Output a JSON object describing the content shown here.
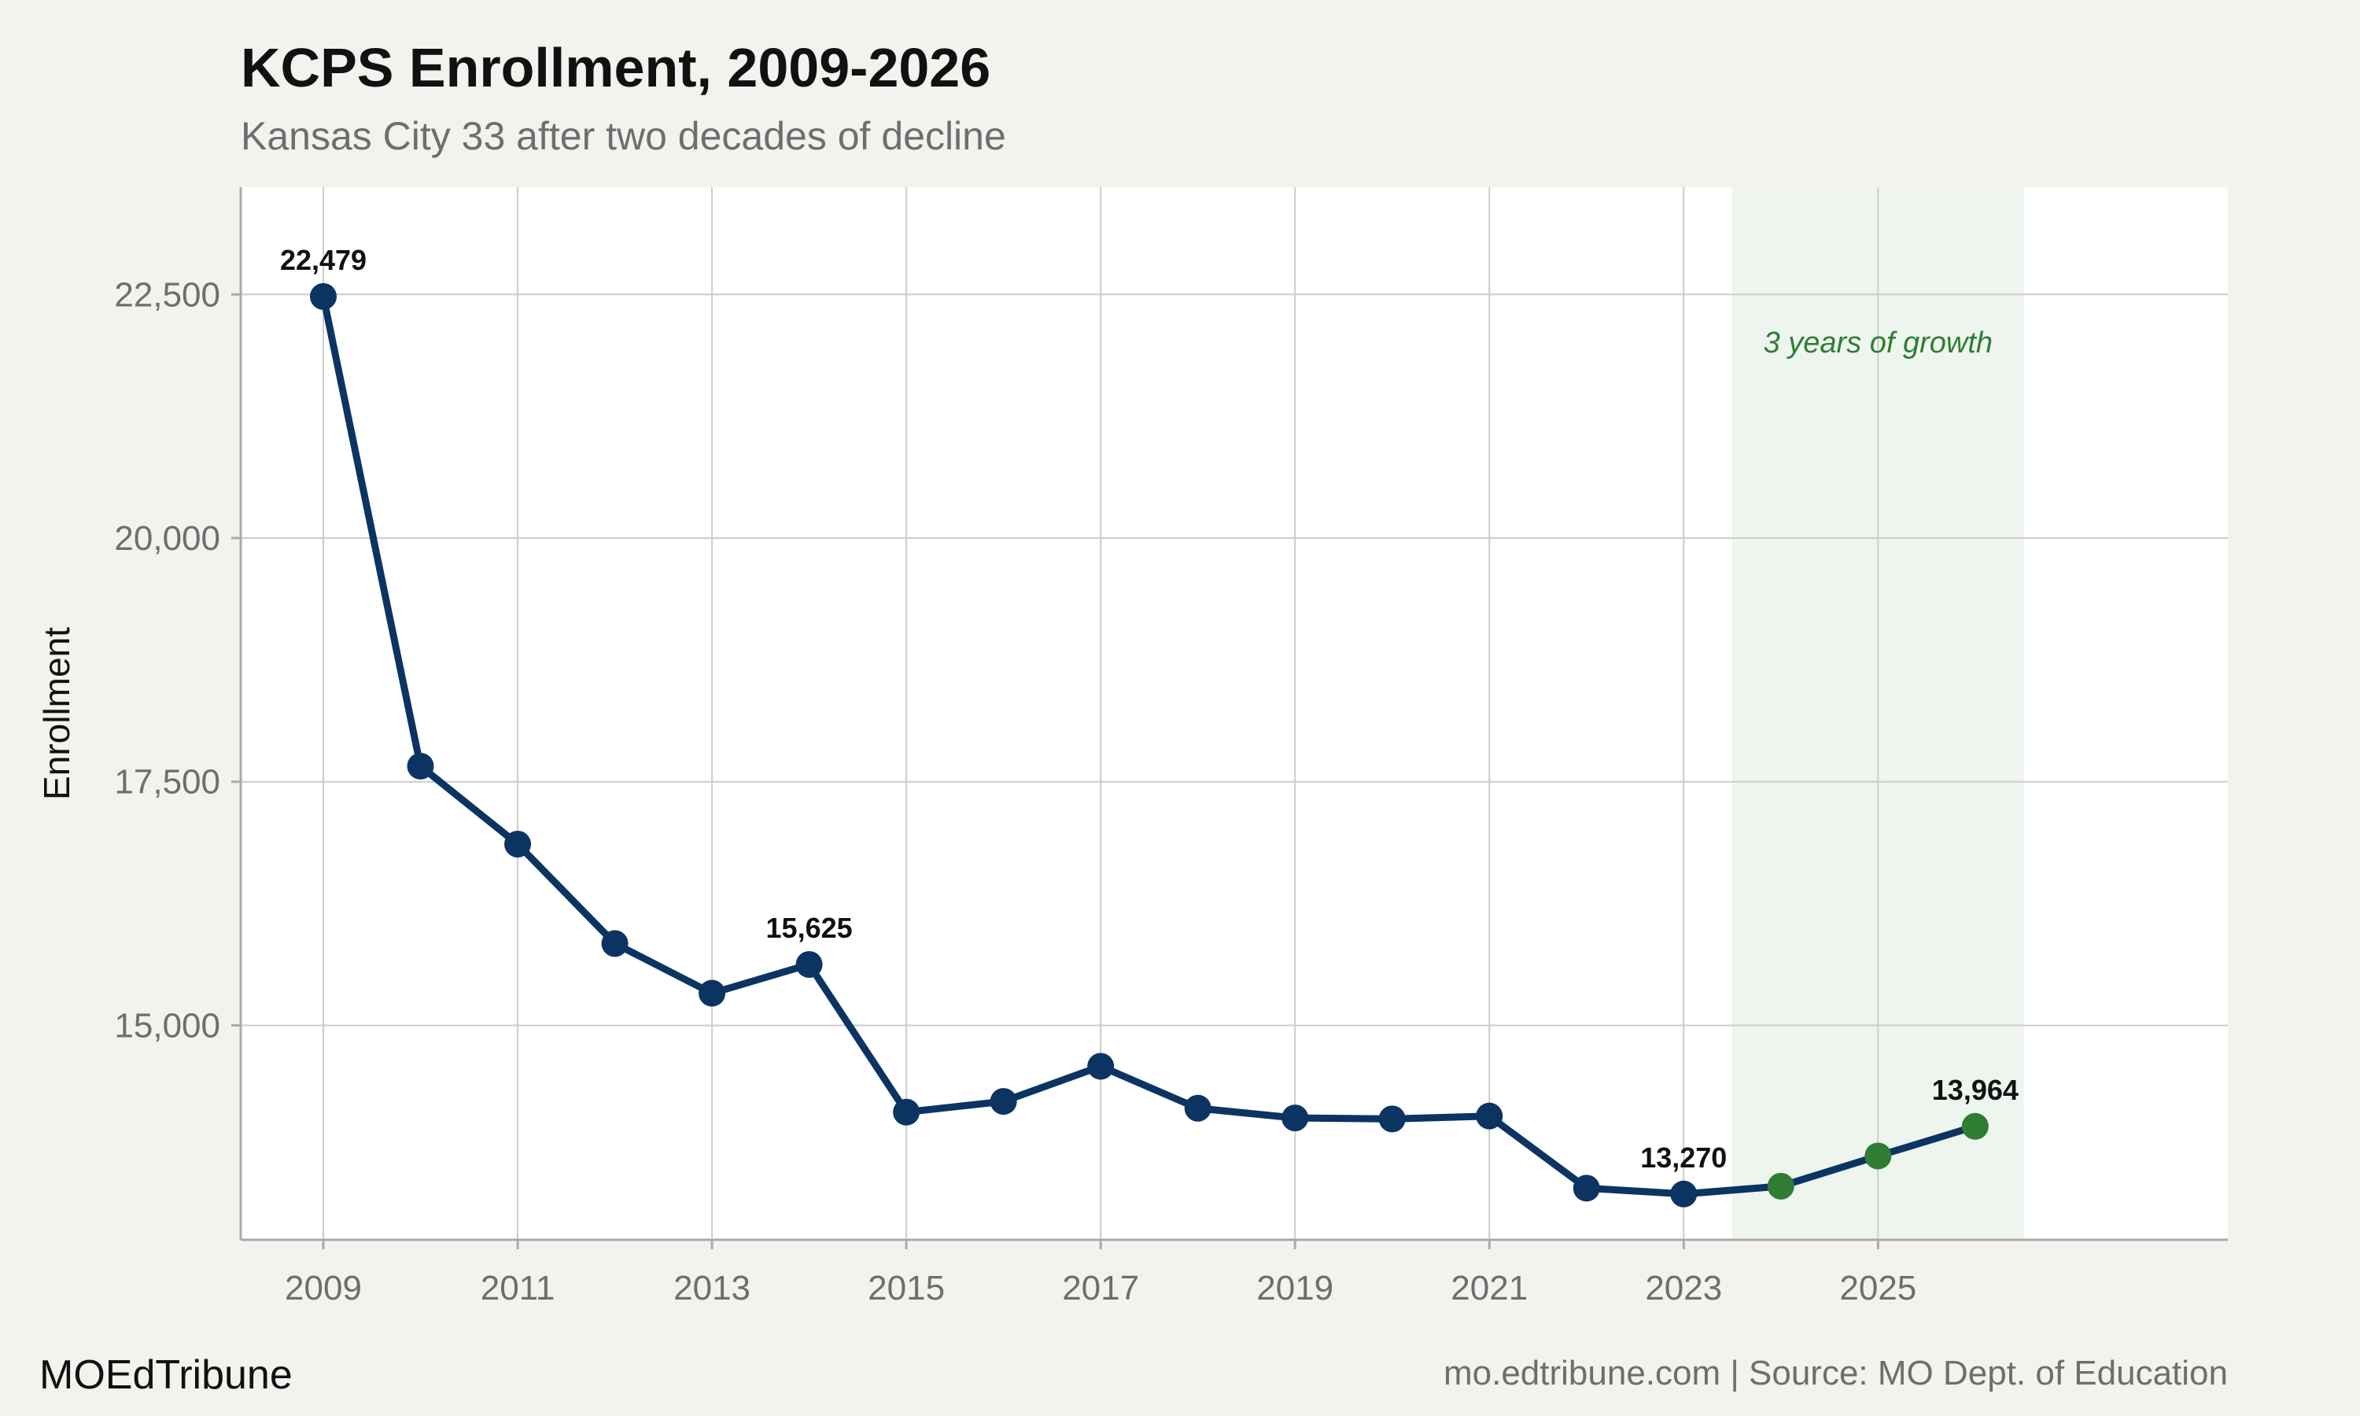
{
  "header": {
    "title": "KCPS Enrollment, 2009-2026",
    "subtitle": "Kansas City 33 after two decades of decline"
  },
  "footer": {
    "brand": "MOEdTribune",
    "source": "mo.edtribune.com | Source: MO Dept. of Education"
  },
  "colors": {
    "background": "#f4f2ee",
    "panel": "#ffffff",
    "decline_line": "#0b3463",
    "growth_points": "#2e7d32",
    "growth_band": "#eef5ee",
    "grid": "#cccccc"
  },
  "chart_data": {
    "type": "line",
    "title": "KCPS Enrollment, 2009-2026",
    "subtitle": "Kansas City 33 after two decades of decline",
    "xlabel": "",
    "ylabel": "Enrollment",
    "xlim": [
      2008.15,
      2028.6
    ],
    "ylim": [
      12800,
      23600
    ],
    "x_ticks": [
      2009,
      2011,
      2013,
      2015,
      2017,
      2019,
      2021,
      2023,
      2025
    ],
    "x_tick_labels": [
      "2009",
      "2011",
      "2013",
      "2015",
      "2017",
      "2019",
      "2021",
      "2023",
      "2025"
    ],
    "y_ticks": [
      15000,
      17500,
      20000,
      22500
    ],
    "y_tick_labels": [
      "15,000",
      "17,500",
      "20,000",
      "22,500"
    ],
    "grid": true,
    "series": [
      {
        "x": [
          2009,
          2010,
          2011,
          2012,
          2013,
          2014,
          2015,
          2016,
          2017,
          2018,
          2019,
          2020,
          2021,
          2022,
          2023,
          2024,
          2025,
          2026
        ],
        "values": [
          22479,
          17660,
          16860,
          15840,
          15330,
          15625,
          14110,
          14220,
          14580,
          14150,
          14050,
          14040,
          14070,
          13330,
          13270,
          13350,
          13660,
          13964
        ],
        "growth_from": 2024
      }
    ],
    "data_labels": [
      {
        "x": 2009,
        "y": 22479,
        "text": "22,479"
      },
      {
        "x": 2014,
        "y": 15625,
        "text": "15,625"
      },
      {
        "x": 2023,
        "y": 13270,
        "text": "13,270"
      },
      {
        "x": 2026,
        "y": 13964,
        "text": "13,964"
      }
    ],
    "annotation": {
      "text": "3 years of growth",
      "x_range": [
        2023.5,
        2026.5
      ],
      "y": 22000
    }
  }
}
